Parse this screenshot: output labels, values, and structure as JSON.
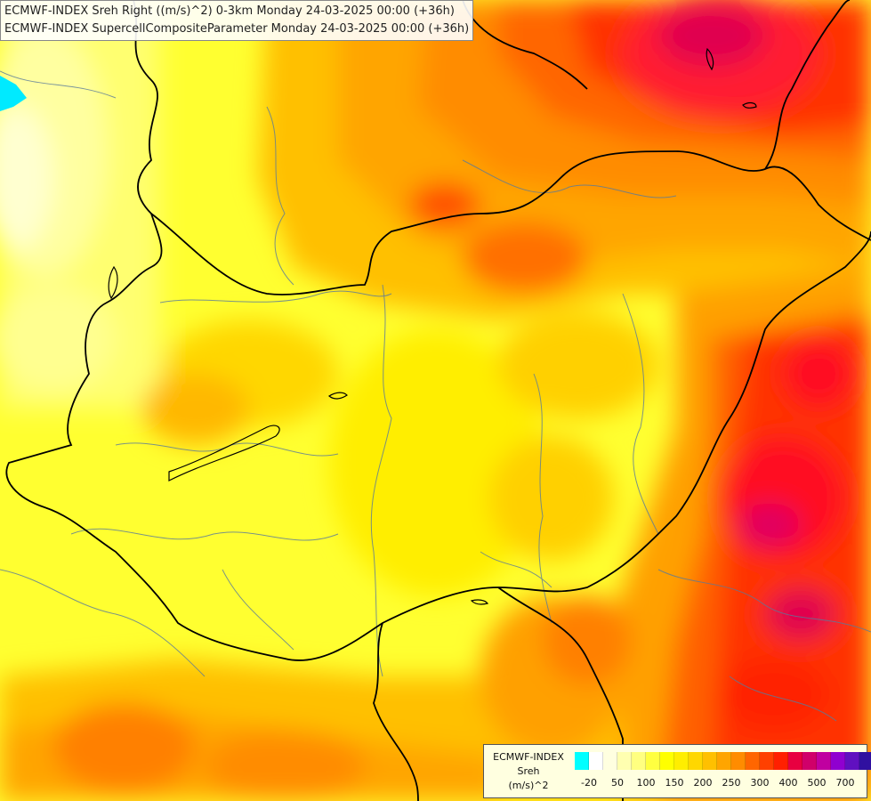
{
  "titles": {
    "line1": "ECMWF-INDEX Sreh Right ((m/s)^2) 0-3km Monday 24-03-2025 00:00 (+36h)",
    "line2": "ECMWF-INDEX SupercellCompositeParameter Monday 24-03-2025 00:00 (+36h)"
  },
  "legend": {
    "line1": "ECMWF-INDEX",
    "line2": "Sreh",
    "line3": "(m/s)^2",
    "colors": [
      "#00ffff",
      "#ffffff",
      "#ffffe0",
      "#ffffb0",
      "#ffff80",
      "#ffff40",
      "#ffff00",
      "#ffee00",
      "#ffd700",
      "#ffc000",
      "#ffa500",
      "#ff8c00",
      "#ff6600",
      "#ff4000",
      "#ff2000",
      "#e80040",
      "#d0006a",
      "#c000a0",
      "#9000d0",
      "#6010c0",
      "#3010a0",
      "#0a0a80"
    ],
    "tick_labels": [
      "-20",
      "50",
      "100",
      "150",
      "200",
      "250",
      "300",
      "400",
      "500",
      "700"
    ]
  }
}
